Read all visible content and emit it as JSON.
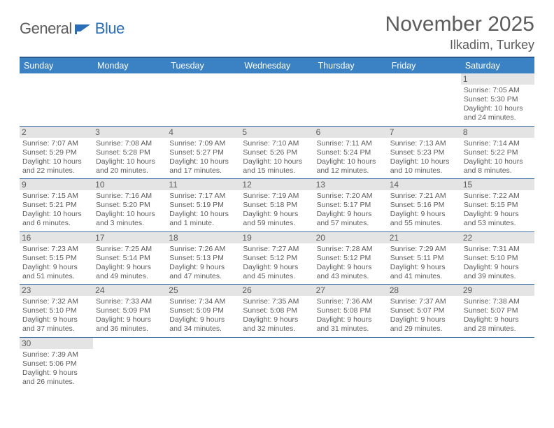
{
  "brand": {
    "part1": "General",
    "part2": "Blue"
  },
  "title": "November 2025",
  "location": "Ilkadim, Turkey",
  "colors": {
    "header_bg": "#3b82c4",
    "header_border": "#2a5a8f",
    "row_divider": "#3b6fa8",
    "daynum_bg": "#e4e4e4",
    "text_gray": "#5c5c5c",
    "brand_blue": "#2a6db8"
  },
  "dayNames": [
    "Sunday",
    "Monday",
    "Tuesday",
    "Wednesday",
    "Thursday",
    "Friday",
    "Saturday"
  ],
  "weeks": [
    [
      null,
      null,
      null,
      null,
      null,
      null,
      {
        "n": "1",
        "sr": "7:05 AM",
        "ss": "5:30 PM",
        "dl": "10 hours and 24 minutes."
      }
    ],
    [
      {
        "n": "2",
        "sr": "7:07 AM",
        "ss": "5:29 PM",
        "dl": "10 hours and 22 minutes."
      },
      {
        "n": "3",
        "sr": "7:08 AM",
        "ss": "5:28 PM",
        "dl": "10 hours and 20 minutes."
      },
      {
        "n": "4",
        "sr": "7:09 AM",
        "ss": "5:27 PM",
        "dl": "10 hours and 17 minutes."
      },
      {
        "n": "5",
        "sr": "7:10 AM",
        "ss": "5:26 PM",
        "dl": "10 hours and 15 minutes."
      },
      {
        "n": "6",
        "sr": "7:11 AM",
        "ss": "5:24 PM",
        "dl": "10 hours and 12 minutes."
      },
      {
        "n": "7",
        "sr": "7:13 AM",
        "ss": "5:23 PM",
        "dl": "10 hours and 10 minutes."
      },
      {
        "n": "8",
        "sr": "7:14 AM",
        "ss": "5:22 PM",
        "dl": "10 hours and 8 minutes."
      }
    ],
    [
      {
        "n": "9",
        "sr": "7:15 AM",
        "ss": "5:21 PM",
        "dl": "10 hours and 6 minutes."
      },
      {
        "n": "10",
        "sr": "7:16 AM",
        "ss": "5:20 PM",
        "dl": "10 hours and 3 minutes."
      },
      {
        "n": "11",
        "sr": "7:17 AM",
        "ss": "5:19 PM",
        "dl": "10 hours and 1 minute."
      },
      {
        "n": "12",
        "sr": "7:19 AM",
        "ss": "5:18 PM",
        "dl": "9 hours and 59 minutes."
      },
      {
        "n": "13",
        "sr": "7:20 AM",
        "ss": "5:17 PM",
        "dl": "9 hours and 57 minutes."
      },
      {
        "n": "14",
        "sr": "7:21 AM",
        "ss": "5:16 PM",
        "dl": "9 hours and 55 minutes."
      },
      {
        "n": "15",
        "sr": "7:22 AM",
        "ss": "5:15 PM",
        "dl": "9 hours and 53 minutes."
      }
    ],
    [
      {
        "n": "16",
        "sr": "7:23 AM",
        "ss": "5:15 PM",
        "dl": "9 hours and 51 minutes."
      },
      {
        "n": "17",
        "sr": "7:25 AM",
        "ss": "5:14 PM",
        "dl": "9 hours and 49 minutes."
      },
      {
        "n": "18",
        "sr": "7:26 AM",
        "ss": "5:13 PM",
        "dl": "9 hours and 47 minutes."
      },
      {
        "n": "19",
        "sr": "7:27 AM",
        "ss": "5:12 PM",
        "dl": "9 hours and 45 minutes."
      },
      {
        "n": "20",
        "sr": "7:28 AM",
        "ss": "5:12 PM",
        "dl": "9 hours and 43 minutes."
      },
      {
        "n": "21",
        "sr": "7:29 AM",
        "ss": "5:11 PM",
        "dl": "9 hours and 41 minutes."
      },
      {
        "n": "22",
        "sr": "7:31 AM",
        "ss": "5:10 PM",
        "dl": "9 hours and 39 minutes."
      }
    ],
    [
      {
        "n": "23",
        "sr": "7:32 AM",
        "ss": "5:10 PM",
        "dl": "9 hours and 37 minutes."
      },
      {
        "n": "24",
        "sr": "7:33 AM",
        "ss": "5:09 PM",
        "dl": "9 hours and 36 minutes."
      },
      {
        "n": "25",
        "sr": "7:34 AM",
        "ss": "5:09 PM",
        "dl": "9 hours and 34 minutes."
      },
      {
        "n": "26",
        "sr": "7:35 AM",
        "ss": "5:08 PM",
        "dl": "9 hours and 32 minutes."
      },
      {
        "n": "27",
        "sr": "7:36 AM",
        "ss": "5:08 PM",
        "dl": "9 hours and 31 minutes."
      },
      {
        "n": "28",
        "sr": "7:37 AM",
        "ss": "5:07 PM",
        "dl": "9 hours and 29 minutes."
      },
      {
        "n": "29",
        "sr": "7:38 AM",
        "ss": "5:07 PM",
        "dl": "9 hours and 28 minutes."
      }
    ],
    [
      {
        "n": "30",
        "sr": "7:39 AM",
        "ss": "5:06 PM",
        "dl": "9 hours and 26 minutes."
      },
      null,
      null,
      null,
      null,
      null,
      null
    ]
  ],
  "labels": {
    "sunrise": "Sunrise: ",
    "sunset": "Sunset: ",
    "daylight": "Daylight: "
  }
}
